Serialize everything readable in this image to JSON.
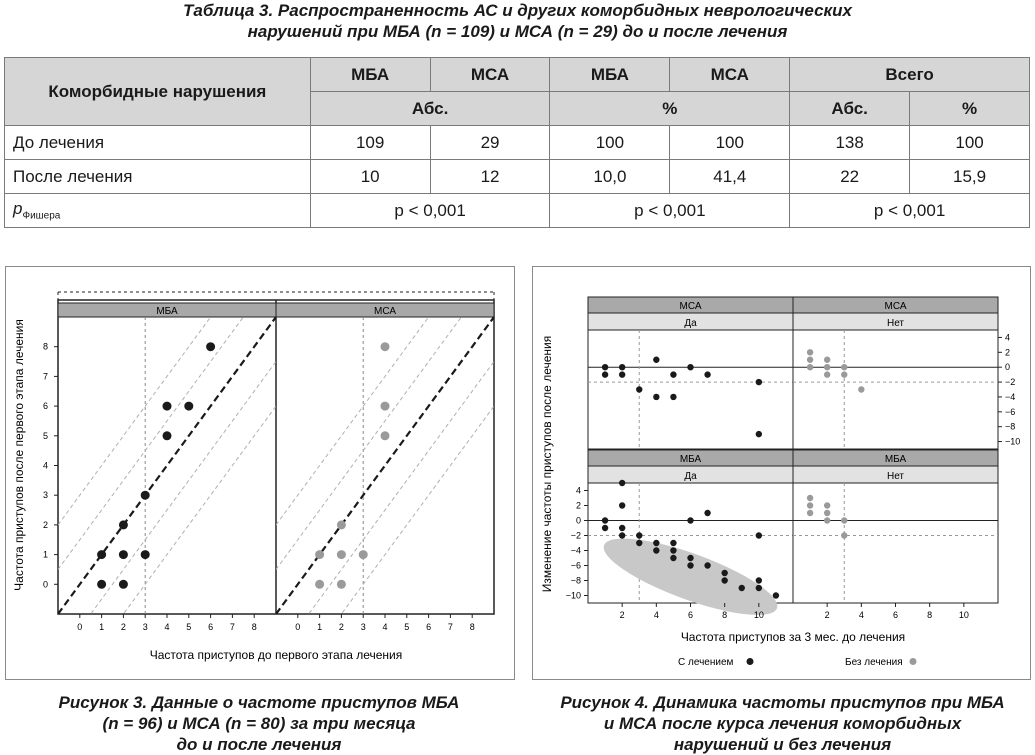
{
  "table_caption": {
    "line1": "Таблица 3. Распространенность АС и других коморбидных неврологических",
    "line2": "нарушений при МБА (n = 109) и МСА (n = 29) до и после лечения"
  },
  "table": {
    "corner": "Коморбидные нарушения",
    "h1": [
      "МБА",
      "МСА",
      "МБА",
      "МСА",
      "Всего"
    ],
    "h2": [
      "Абс.",
      "%",
      "Абс.",
      "%"
    ],
    "rows": [
      {
        "label": "До лечения",
        "cells": [
          "109",
          "29",
          "100",
          "100",
          "138",
          "100"
        ]
      },
      {
        "label": "После лечения",
        "cells": [
          "10",
          "12",
          "10,0",
          "41,4",
          "22",
          "15,9"
        ]
      }
    ],
    "p_row": {
      "label": "p",
      "label_sub": "Фишера",
      "values": [
        "p < 0,001",
        "p < 0,001",
        "p < 0,001"
      ]
    }
  },
  "fig3": {
    "panels": [
      "МБА",
      "МСА"
    ],
    "ylabel": "Частота приступов после первого этапа лечения",
    "xlabel": "Частота приступов до первого этапа лечения",
    "xticks": [
      "0",
      "1",
      "2",
      "3",
      "4",
      "5",
      "6",
      "7",
      "8"
    ],
    "yticks": [
      "0",
      "1",
      "2",
      "3",
      "4",
      "5",
      "6",
      "7",
      "8"
    ],
    "caption": [
      "Рисунок 3. Данные о частоте приступов МБА",
      "(n = 96) и МСА (n = 80) за три месяца",
      "до и после лечения"
    ]
  },
  "fig4": {
    "top_panels": [
      {
        "group": "МСА",
        "cond": "Да"
      },
      {
        "group": "МСА",
        "cond": "Нет"
      }
    ],
    "bottom_panels": [
      {
        "group": "МБА",
        "cond": "Да"
      },
      {
        "group": "МБА",
        "cond": "Нет"
      }
    ],
    "ylabel": "Изменение частоты приступов после лечения",
    "xlabel": "Частота приступов за 3 мес. до лечения",
    "xticks": [
      "2",
      "4",
      "6",
      "8",
      "10"
    ],
    "yticks": [
      "4",
      "2",
      "0",
      "−2",
      "−4",
      "−6",
      "−8",
      "−10"
    ],
    "legend": [
      "С лечением",
      "Без лечения"
    ],
    "caption": [
      "Рисунок 4. Динамика частоты приступов при МБА",
      "и МСА после курса лечения коморбидных",
      "нарушений и без лечения"
    ]
  },
  "chart_data": [
    {
      "type": "scatter",
      "panel": "МБА",
      "x": [
        1,
        1,
        2,
        2,
        2,
        3,
        3,
        4,
        4,
        5,
        6
      ],
      "y": [
        0,
        1,
        0,
        1,
        2,
        1,
        3,
        5,
        6,
        6,
        8
      ],
      "xlabel": "Частота приступов до первого этапа лечения",
      "ylabel": "Частота приступов после первого этапа лечения",
      "xlim": [
        -1,
        9
      ],
      "ylim": [
        -1,
        9
      ]
    },
    {
      "type": "scatter",
      "panel": "МСА",
      "x": [
        1,
        1,
        2,
        2,
        2,
        3,
        4,
        4,
        4
      ],
      "y": [
        0,
        1,
        0,
        1,
        2,
        1,
        5,
        6,
        8
      ],
      "xlabel": "Частота приступов до первого этапа лечения",
      "ylabel": "Частота приступов после первого этапа лечения",
      "xlim": [
        -1,
        9
      ],
      "ylim": [
        -1,
        9
      ]
    },
    {
      "type": "scatter",
      "panel": "МСА / Да",
      "x": [
        1,
        1,
        2,
        2,
        3,
        4,
        4,
        5,
        5,
        6,
        7,
        10,
        10
      ],
      "y": [
        0,
        -1,
        0,
        -1,
        -3,
        -4,
        1,
        -4,
        -1,
        0,
        -1,
        -2,
        -9
      ],
      "ylim": [
        -11,
        5
      ]
    },
    {
      "type": "scatter",
      "panel": "МСА / Нет",
      "x": [
        1,
        1,
        1,
        2,
        2,
        2,
        3,
        3,
        4
      ],
      "y": [
        1,
        2,
        0,
        1,
        0,
        -1,
        0,
        -1,
        -3
      ],
      "ylim": [
        -11,
        5
      ]
    },
    {
      "type": "scatter",
      "panel": "МБА / Да",
      "x": [
        1,
        1,
        2,
        2,
        2,
        2,
        3,
        3,
        4,
        4,
        5,
        5,
        5,
        6,
        6,
        6,
        7,
        7,
        8,
        8,
        9,
        10,
        10,
        10,
        11
      ],
      "y": [
        0,
        -1,
        5,
        2,
        -1,
        -2,
        -2,
        -3,
        -3,
        -4,
        -4,
        -5,
        -3,
        -5,
        -6,
        0,
        -6,
        1,
        -7,
        -8,
        -9,
        -8,
        -9,
        -2,
        -10
      ],
      "ylim": [
        -11,
        5
      ]
    },
    {
      "type": "scatter",
      "panel": "МБА / Нет",
      "x": [
        1,
        1,
        1,
        2,
        2,
        2,
        3,
        3
      ],
      "y": [
        3,
        2,
        1,
        2,
        1,
        0,
        0,
        -2
      ],
      "ylim": [
        -11,
        5
      ]
    }
  ]
}
